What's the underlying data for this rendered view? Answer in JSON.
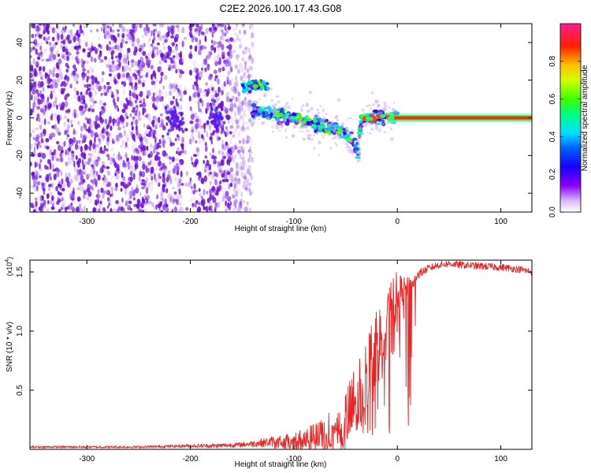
{
  "title": "C2E2.2026.100.17.43.G08",
  "colors": {
    "snr_line": "#ee2222",
    "axis": "#000000",
    "spectro_points": "#7a1ee6"
  },
  "chart_data": [
    {
      "type": "heatmap",
      "name": "spectrogram",
      "xlabel": "Height of straight line (km)",
      "ylabel": "Frequency (Hz)",
      "xlim": [
        -355,
        130
      ],
      "ylim": [
        -50,
        50
      ],
      "xticks": [
        -300,
        -200,
        -100,
        0,
        100
      ],
      "yticks": [
        -40,
        -20,
        0,
        20,
        40
      ],
      "xtick_labels": [
        "-300",
        "-200",
        "-100",
        "0",
        "100"
      ],
      "ytick_labels": [
        "-40",
        "-20",
        "0",
        "20",
        "40"
      ],
      "colorbar": {
        "label": "Normalized spectral amplitude",
        "ticks": [
          0.0,
          0.2,
          0.4,
          0.6,
          0.8
        ],
        "tick_labels": [
          "0.0",
          "0.2",
          "0.4",
          "0.6",
          "0.8"
        ],
        "range": [
          0,
          1
        ],
        "stops": [
          "#ffffff",
          "#7b00ff",
          "#0000ff",
          "#00ffff",
          "#00ff00",
          "#ffff00",
          "#ff8000",
          "#ff0000",
          "#ff0080"
        ]
      },
      "features": {
        "noise_region_x": [
          -355,
          -140
        ],
        "gap_x": [
          -207,
          -200
        ],
        "upper_branch": {
          "x": [
            -145,
            -125
          ],
          "freq": 17
        },
        "main_trace": [
          [
            -140,
            3
          ],
          [
            -120,
            2
          ],
          [
            -100,
            0
          ],
          [
            -80,
            -3
          ],
          [
            -60,
            -6
          ],
          [
            -45,
            -10
          ],
          [
            -38,
            -18
          ],
          [
            -35,
            -2
          ],
          [
            -20,
            1
          ],
          [
            0,
            0
          ],
          [
            130,
            0
          ]
        ],
        "stable_line_x": [
          -10,
          130
        ]
      }
    },
    {
      "type": "line",
      "name": "snr",
      "xlabel": "Height of straight line (km)",
      "ylabel": "SNR (10 * v/v)",
      "multiplier": "(x10",
      "multiplier_exp": "4",
      "multiplier_close": ")",
      "xlim": [
        -355,
        130
      ],
      "ylim": [
        0,
        1.6
      ],
      "xticks": [
        -300,
        -200,
        -100,
        0,
        100
      ],
      "yticks": [
        0.5,
        1.0,
        1.5
      ],
      "xtick_labels": [
        "-300",
        "-200",
        "-100",
        "0",
        "100"
      ],
      "ytick_labels": [
        "0.5",
        "1.0",
        "1.5"
      ],
      "series": [
        {
          "name": "SNR",
          "x": [
            -355,
            -300,
            -250,
            -200,
            -175,
            -150,
            -125,
            -100,
            -90,
            -80,
            -70,
            -60,
            -50,
            -45,
            -40,
            -35,
            -30,
            -25,
            -20,
            -15,
            -10,
            -5,
            0,
            5,
            10,
            15,
            20,
            30,
            40,
            50,
            60,
            80,
            100,
            120,
            130
          ],
          "y": [
            0.02,
            0.02,
            0.02,
            0.03,
            0.03,
            0.04,
            0.06,
            0.09,
            0.1,
            0.12,
            0.16,
            0.22,
            0.32,
            0.4,
            0.5,
            0.6,
            0.75,
            0.85,
            0.95,
            1.05,
            1.18,
            1.3,
            1.35,
            1.38,
            1.4,
            1.42,
            1.48,
            1.53,
            1.56,
            1.57,
            1.56,
            1.55,
            1.54,
            1.52,
            1.5
          ],
          "noise": [
            0.01,
            0.01,
            0.01,
            0.015,
            0.02,
            0.02,
            0.04,
            0.08,
            0.12,
            0.14,
            0.18,
            0.22,
            0.28,
            0.32,
            0.35,
            0.38,
            0.4,
            0.35,
            0.32,
            0.3,
            0.28,
            0.25,
            0.22,
            0.12,
            0.08,
            0.06,
            0.04,
            0.03,
            0.03,
            0.03,
            0.03,
            0.03,
            0.03,
            0.03,
            0.03
          ]
        }
      ]
    }
  ]
}
